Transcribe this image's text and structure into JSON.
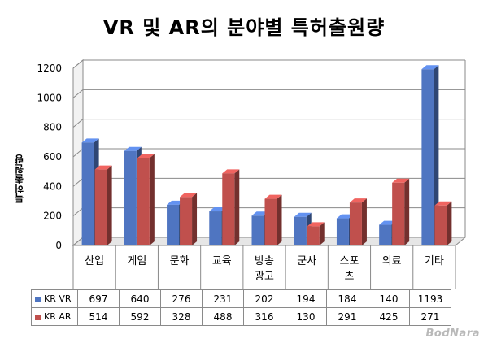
{
  "chart_data": {
    "type": "bar",
    "title": "VR 및 AR의 분야별 특허출원량",
    "ylabel": "특허출원량",
    "xlabel": "",
    "ylim": [
      0,
      1200
    ],
    "yticks": [
      0,
      200,
      400,
      600,
      800,
      1000,
      1200
    ],
    "categories": [
      "산업",
      "게임",
      "문화",
      "교육",
      "방송\n광고",
      "군사",
      "스포\n츠",
      "의료",
      "기타"
    ],
    "series": [
      {
        "name": "KR VR",
        "color": "#4f75c1",
        "values": [
          697,
          640,
          276,
          231,
          202,
          194,
          184,
          140,
          1193
        ]
      },
      {
        "name": "KR AR",
        "color": "#c0504d",
        "values": [
          514,
          592,
          328,
          488,
          316,
          130,
          291,
          425,
          271
        ]
      }
    ],
    "grid": true,
    "style": "3d-clustered"
  },
  "watermark": "BodNara"
}
